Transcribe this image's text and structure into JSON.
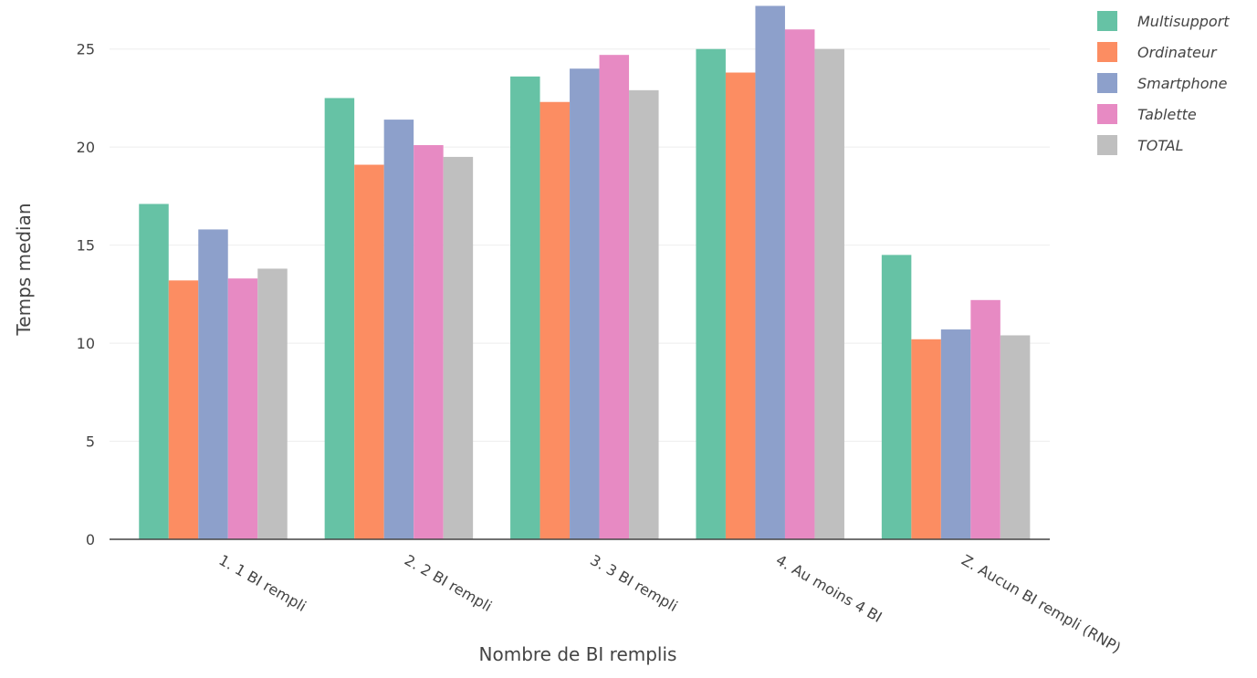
{
  "chart_data": {
    "type": "bar",
    "title": "",
    "xlabel": "Nombre de BI remplis",
    "ylabel": "Temps median",
    "ylim": [
      0,
      27.5
    ],
    "y_ticks": [
      "0",
      "5",
      "10",
      "15",
      "20",
      "25"
    ],
    "grid": "horizontal",
    "legend_position": "top-right",
    "categories": [
      "1. 1 BI rempli",
      "2. 2 BI rempli",
      "3. 3 BI rempli",
      "4. Au moins 4 BI",
      "Z. Aucun BI rempli (RNP)"
    ],
    "series": [
      {
        "name": "Multisupport",
        "color": "#66c2a5",
        "values": [
          17.1,
          22.5,
          23.6,
          25.0,
          14.5
        ]
      },
      {
        "name": "Ordinateur",
        "color": "#fc8d62",
        "values": [
          13.2,
          19.1,
          22.3,
          23.8,
          10.2
        ]
      },
      {
        "name": "Smartphone",
        "color": "#8da0cb",
        "values": [
          15.8,
          21.4,
          24.0,
          27.2,
          10.7
        ]
      },
      {
        "name": "Tablette",
        "color": "#e78ac3",
        "values": [
          13.3,
          20.1,
          24.7,
          26.0,
          12.2
        ]
      },
      {
        "name": "TOTAL",
        "color": "#bfbfbf",
        "values": [
          13.8,
          19.5,
          22.9,
          25.0,
          10.4
        ]
      }
    ]
  }
}
